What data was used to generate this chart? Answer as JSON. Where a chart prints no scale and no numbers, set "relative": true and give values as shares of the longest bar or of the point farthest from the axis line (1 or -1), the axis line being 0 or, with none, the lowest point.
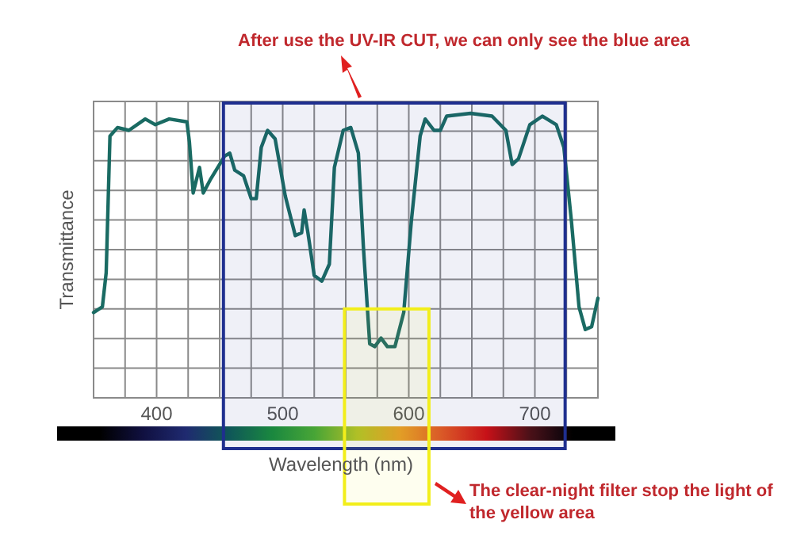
{
  "chart_data": {
    "type": "line",
    "relative": true,
    "xlabel": "Wavelength (nm)",
    "ylabel": "Transmittance",
    "annotations": [
      "After use the UV-IR CUT, we can only see the blue area",
      "The clear-night filter stop the light of the yellow area"
    ],
    "xlim": [
      350,
      750
    ],
    "xticks": [
      {
        "value": 350,
        "label": null
      },
      {
        "value": 375,
        "label": null
      },
      400,
      {
        "value": 425,
        "label": null
      },
      {
        "value": 450,
        "label": null
      },
      {
        "value": 475,
        "label": null
      },
      500,
      {
        "value": 525,
        "label": null
      },
      {
        "value": 550,
        "label": null
      },
      {
        "value": 575,
        "label": null
      },
      600,
      {
        "value": 625,
        "label": null
      },
      {
        "value": 650,
        "label": null
      },
      {
        "value": 675,
        "label": null
      },
      700,
      {
        "value": 725,
        "label": null
      },
      {
        "value": 750,
        "label": null
      }
    ],
    "grid": true,
    "marker": "none",
    "line_style": "solid",
    "bands": [
      {
        "axis": "x",
        "from": 453,
        "to": 724,
        "color": "#1f2f8f"
      },
      {
        "axis": "x",
        "from": 549,
        "to": 616,
        "color": "#f2ee1a"
      }
    ],
    "series": [
      {
        "color": "#1a6b63",
        "x": [
          350,
          357,
          360,
          363,
          369,
          378,
          391,
          399,
          410,
          424,
          426,
          429,
          434,
          437,
          443,
          454,
          458,
          462,
          469,
          475,
          479,
          483,
          488,
          494,
          502,
          510,
          515,
          517,
          520,
          525,
          531,
          537,
          541,
          548,
          554,
          560,
          564,
          569,
          573,
          578,
          583,
          589,
          596,
          602,
          609,
          613,
          620,
          625,
          630,
          649,
          666,
          677,
          682,
          687,
          696,
          706,
          717,
          723,
          729,
          735,
          740,
          745,
          750
        ],
        "values": [
          0.3,
          0.32,
          0.44,
          0.92,
          0.95,
          0.94,
          0.98,
          0.96,
          0.98,
          0.97,
          0.9,
          0.72,
          0.81,
          0.72,
          0.77,
          0.85,
          0.86,
          0.8,
          0.78,
          0.7,
          0.7,
          0.88,
          0.94,
          0.91,
          0.71,
          0.57,
          0.58,
          0.66,
          0.58,
          0.43,
          0.41,
          0.47,
          0.81,
          0.94,
          0.95,
          0.86,
          0.53,
          0.19,
          0.18,
          0.21,
          0.18,
          0.18,
          0.3,
          0.62,
          0.92,
          0.98,
          0.94,
          0.94,
          0.99,
          1,
          0.99,
          0.94,
          0.82,
          0.84,
          0.96,
          0.99,
          0.96,
          0.88,
          0.62,
          0.32,
          0.24,
          0.25,
          0.35
        ]
      }
    ]
  }
}
